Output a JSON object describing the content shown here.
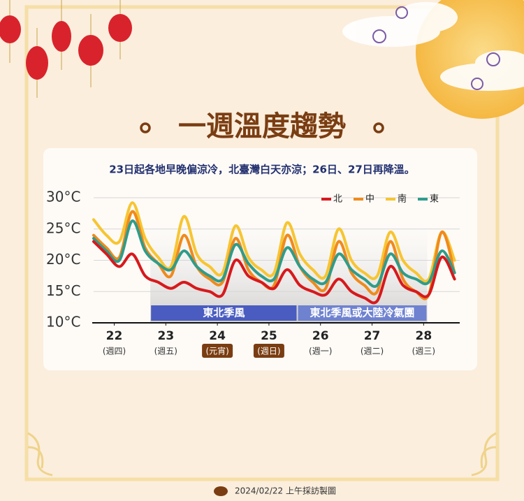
{
  "chart_data": {
    "type": "line",
    "title": "一週溫度趨勢",
    "subtitle": "23日起各地早晚偏涼冷，北臺灣白天亦涼；26日、27日再降溫。",
    "x": [
      21.6,
      21.85,
      22.1,
      22.35,
      22.6,
      22.85,
      23.1,
      23.35,
      23.6,
      23.85,
      24.1,
      24.35,
      24.6,
      24.85,
      25.1,
      25.35,
      25.6,
      25.85,
      26.1,
      26.35,
      26.6,
      26.85,
      27.1,
      27.35,
      27.6,
      27.85,
      28.1,
      28.35,
      28.6
    ],
    "xlim": [
      21.6,
      28.7
    ],
    "xticks": [
      22,
      23,
      24,
      25,
      26,
      27,
      28
    ],
    "x_sublabels": [
      "(週四)",
      "(週五)",
      "(元宵)",
      "(週日)",
      "(週一)",
      "(週二)",
      "(週三)"
    ],
    "x_sublabel_highlight": [
      false,
      false,
      true,
      true,
      false,
      false,
      false
    ],
    "ylim": [
      10,
      30
    ],
    "yticks": [
      {
        "value": 10,
        "label": "10°C"
      },
      {
        "value": 15,
        "label": "15°C"
      },
      {
        "value": 20,
        "label": "20°C"
      },
      {
        "value": 25,
        "label": "25°C"
      },
      {
        "value": 30,
        "label": "30°C"
      }
    ],
    "grid": true,
    "legend": "top-right",
    "series": [
      {
        "name": "北",
        "color": "#d7191c",
        "values": [
          23,
          21,
          19,
          21,
          17.5,
          16.5,
          15.5,
          16.5,
          15.5,
          15,
          14.5,
          20,
          17.5,
          16.5,
          15.5,
          18.5,
          16,
          15,
          14.5,
          17,
          15,
          14,
          13.5,
          19,
          16,
          15,
          14.5,
          20.5,
          17
        ]
      },
      {
        "name": "中",
        "color": "#f08a1c",
        "values": [
          24,
          22,
          20.5,
          27.8,
          22,
          19.5,
          17.5,
          24,
          19,
          17,
          16.5,
          23.5,
          18.5,
          16.5,
          16,
          24,
          19,
          16.5,
          15.5,
          23,
          18,
          16,
          15,
          23,
          17,
          15,
          14.5,
          24.5,
          18
        ]
      },
      {
        "name": "南",
        "color": "#f7c531",
        "values": [
          26.5,
          24,
          23,
          29.2,
          23.5,
          20.5,
          19,
          27,
          21,
          19,
          18,
          25.5,
          20.5,
          18.5,
          18,
          26,
          21,
          18.5,
          17.5,
          25,
          20,
          18,
          17.5,
          24.5,
          20,
          18,
          17,
          24.5,
          20
        ]
      },
      {
        "name": "東",
        "color": "#2f9c8a",
        "values": [
          23.5,
          21.5,
          20,
          26.3,
          21.5,
          19.5,
          18.5,
          21.5,
          19,
          17.5,
          17,
          22.5,
          19.5,
          17.5,
          17,
          22,
          19,
          17,
          16.5,
          21,
          18.5,
          17,
          16,
          21,
          18,
          17,
          16.5,
          21.5,
          18
        ]
      }
    ],
    "annotations": [
      {
        "text": "東北季風",
        "x": [
          22.7,
          25.55
        ],
        "color": "#4a5cc0"
      },
      {
        "text": "東北季風或大陸冷氣團",
        "x": [
          25.55,
          28.07
        ],
        "color": "#6f82d0"
      }
    ]
  },
  "footer": {
    "text": "2024/02/22 上午採訪製圖"
  }
}
